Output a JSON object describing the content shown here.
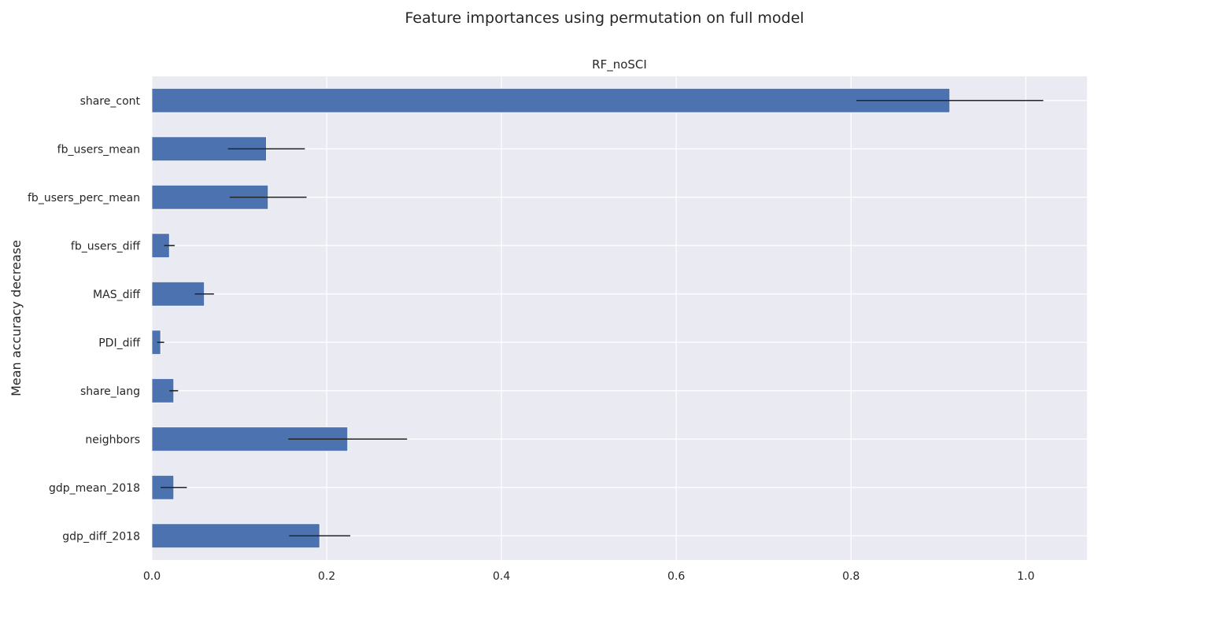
{
  "suptitle": "Feature importances using permutation on full model",
  "chart_data": {
    "type": "bar",
    "orientation": "horizontal",
    "title": "RF_noSCI",
    "xlabel": "",
    "ylabel": "Mean accuracy decrease",
    "categories": [
      "share_cont",
      "fb_users_mean",
      "fb_users_perc_mean",
      "fb_users_diff",
      "MAS_diff",
      "PDI_diff",
      "share_lang",
      "neighbors",
      "gdp_mean_2018",
      "gdp_diff_2018"
    ],
    "values": [
      0.913,
      0.131,
      0.133,
      0.02,
      0.06,
      0.01,
      0.025,
      0.224,
      0.025,
      0.192
    ],
    "errors": [
      0.107,
      0.044,
      0.044,
      0.006,
      0.011,
      0.004,
      0.005,
      0.068,
      0.015,
      0.035
    ],
    "xlim": [
      0,
      1.07
    ],
    "xticks": [
      0.0,
      0.2,
      0.4,
      0.6,
      0.8,
      1.0
    ],
    "xtick_labels": [
      "0.0",
      "0.2",
      "0.4",
      "0.6",
      "0.8",
      "1.0"
    ],
    "grid": true,
    "legend": "none",
    "colors": {
      "bar": "#4c72b0",
      "error_bar": "#262626",
      "axes_background": "#eaeaf2",
      "grid": "#ffffff"
    }
  }
}
